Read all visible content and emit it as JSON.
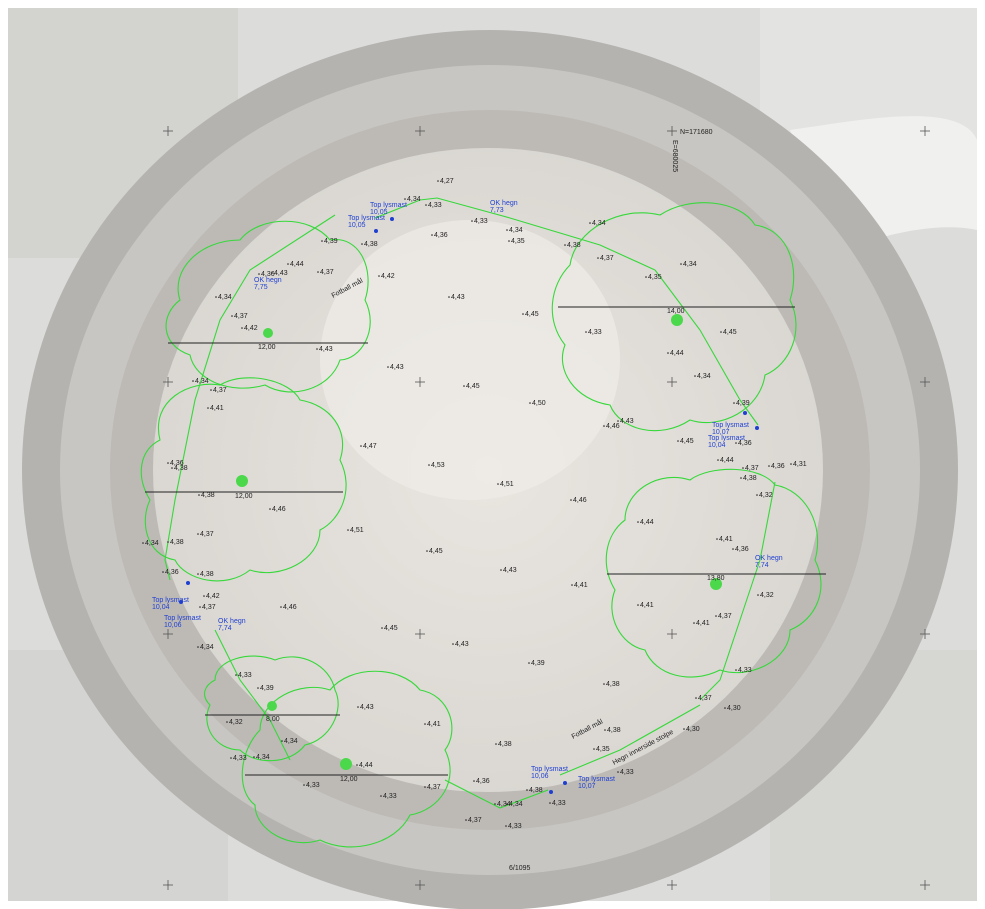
{
  "grid": {
    "northing_label": "N=171680",
    "easting_label": "E=680025",
    "bottom_label": "6/1095"
  },
  "labels": {
    "fotball_mal_top": "Fotball mål",
    "fotball_mal_bottom": "Fotball mål",
    "hegn_innerside": "Hegn innerside stolpe"
  },
  "colors": {
    "canopy": "#36d83a",
    "annotation_blue": "#1f3fd0",
    "text": "#222222"
  },
  "trees": [
    {
      "id": "tree-nw",
      "diameter": "12,00"
    },
    {
      "id": "tree-w",
      "diameter": "12,00"
    },
    {
      "id": "tree-sw",
      "diameter": "8,00"
    },
    {
      "id": "tree-s",
      "diameter": "12,00"
    },
    {
      "id": "tree-ne",
      "diameter": "14,00"
    },
    {
      "id": "tree-e",
      "diameter": "13,80"
    }
  ],
  "annotations": [
    {
      "line1": "Top lysmast",
      "line2": "10,05"
    },
    {
      "line1": "Top lysmast",
      "line2": "10,05"
    },
    {
      "line1": "OK hegn",
      "line2": "7,73"
    },
    {
      "line1": "OK hegn",
      "line2": "7,75"
    },
    {
      "line1": "Top lysmast",
      "line2": "10,07"
    },
    {
      "line1": "Top lysmast",
      "line2": "10,04"
    },
    {
      "line1": "OK hegn",
      "line2": "7,74"
    },
    {
      "line1": "Top lysmast",
      "line2": "10,04"
    },
    {
      "line1": "Top lysmast",
      "line2": "10,06"
    },
    {
      "line1": "OK hegn",
      "line2": "7,74"
    },
    {
      "line1": "Top lysmast",
      "line2": "10,06"
    },
    {
      "line1": "Top lysmast",
      "line2": "10,07"
    }
  ],
  "spot_heights": [
    "4,27",
    "4,34",
    "4,33",
    "4,33",
    "4,36",
    "4,34",
    "4,34",
    "4,35",
    "4,38",
    "4,34",
    "4,37",
    "4,39",
    "4,38",
    "4,37",
    "4,36",
    "4,44",
    "4,43",
    "4,42",
    "4,34",
    "4,37",
    "4,42",
    "4,43",
    "4,43",
    "4,45",
    "4,35",
    "4,33",
    "4,43",
    "4,45",
    "4,44",
    "4,34",
    "4,43",
    "4,34",
    "4,37",
    "4,41",
    "4,45",
    "4,50",
    "4,39",
    "4,36",
    "4,46",
    "4,45",
    "4,44",
    "4,36",
    "4,38",
    "4,47",
    "4,53",
    "4,37",
    "4,38",
    "4,32",
    "4,31",
    "4,36",
    "4,38",
    "4,51",
    "4,46",
    "4,46",
    "4,44",
    "4,34",
    "4,38",
    "4,37",
    "4,51",
    "4,41",
    "4,36",
    "4,45",
    "4,43",
    "4,41",
    "4,36",
    "4,38",
    "4,42",
    "4,46",
    "4,32",
    "4,37",
    "4,41",
    "4,41",
    "4,37",
    "4,34",
    "4,45",
    "4,43",
    "4,33",
    "4,39",
    "4,37",
    "4,33",
    "4,39",
    "4,38",
    "4,32",
    "4,43",
    "4,34",
    "4,34",
    "4,30",
    "4,41",
    "4,38",
    "4,30",
    "4,33",
    "4,38",
    "4,35",
    "4,44",
    "4,36",
    "4,33",
    "4,37",
    "4,34",
    "4,33",
    "4,38",
    "4,33",
    "4,33",
    "4,34",
    "4,37",
    "4,33"
  ]
}
